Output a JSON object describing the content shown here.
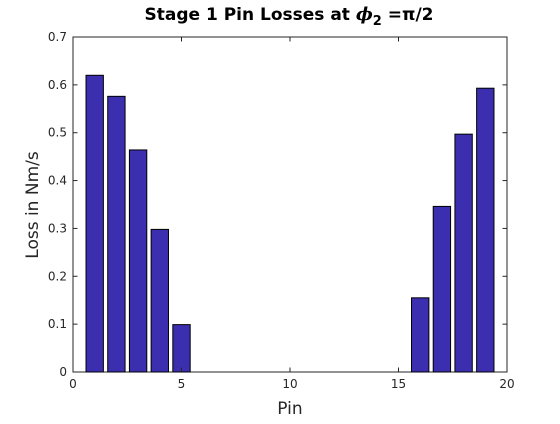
{
  "chart_data": {
    "type": "bar",
    "title": {
      "prefix": "Stage 1 Pin Losses at ",
      "symbol": "ϕ",
      "subscript": "2",
      "suffix": " =π/2"
    },
    "xlabel": "Pin",
    "ylabel": "Loss in Nm/s",
    "xlim": [
      0,
      20
    ],
    "ylim": [
      0,
      0.7
    ],
    "xticks": [
      0,
      5,
      10,
      15,
      20
    ],
    "xtick_labels": [
      "0",
      "5",
      "10",
      "15",
      "20"
    ],
    "yticks": [
      0,
      0.1,
      0.2,
      0.3,
      0.4,
      0.5,
      0.6,
      0.7
    ],
    "ytick_labels": [
      "0",
      "0.1",
      "0.2",
      "0.3",
      "0.4",
      "0.5",
      "0.6",
      "0.7"
    ],
    "grid": false,
    "bar_width": 0.8,
    "bar_color": "#3b2fb0",
    "edge_color": "#000000",
    "x": [
      1,
      2,
      3,
      4,
      5,
      6,
      7,
      8,
      9,
      10,
      11,
      12,
      13,
      14,
      15,
      16,
      17,
      18,
      19
    ],
    "values": [
      0.62,
      0.576,
      0.464,
      0.298,
      0.099,
      0,
      0,
      0,
      0,
      0,
      0,
      0,
      0,
      0,
      0,
      0.155,
      0.346,
      0.497,
      0.593
    ]
  }
}
